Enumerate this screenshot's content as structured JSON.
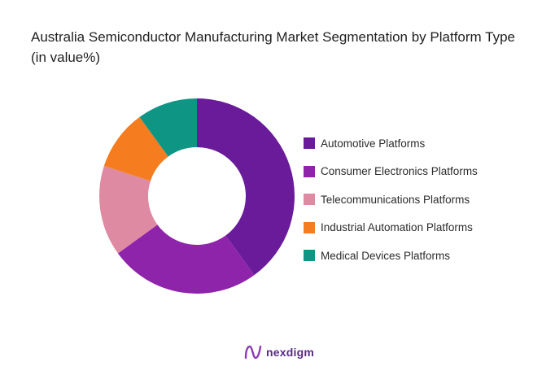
{
  "title": "Australia Semiconductor Manufacturing Market Segmentation by Platform Type (in value%)",
  "chart_data": {
    "type": "pie",
    "style": "donut",
    "legend_position": "right",
    "series": [
      {
        "name": "Automotive Platforms",
        "value": 40,
        "color": "#6a1b9a"
      },
      {
        "name": "Consumer Electronics Platforms",
        "value": 25,
        "color": "#8e24aa"
      },
      {
        "name": "Telecommunications Platforms",
        "value": 15,
        "color": "#de8aa2"
      },
      {
        "name": "Industrial Automation Platforms",
        "value": 10,
        "color": "#f57c1f"
      },
      {
        "name": "Medical Devices Platforms",
        "value": 10,
        "color": "#0e9584"
      }
    ]
  },
  "brand": {
    "name": "nexdigm",
    "logo_icon": "nexdigm-logo-icon",
    "color": "#5a2a86"
  }
}
